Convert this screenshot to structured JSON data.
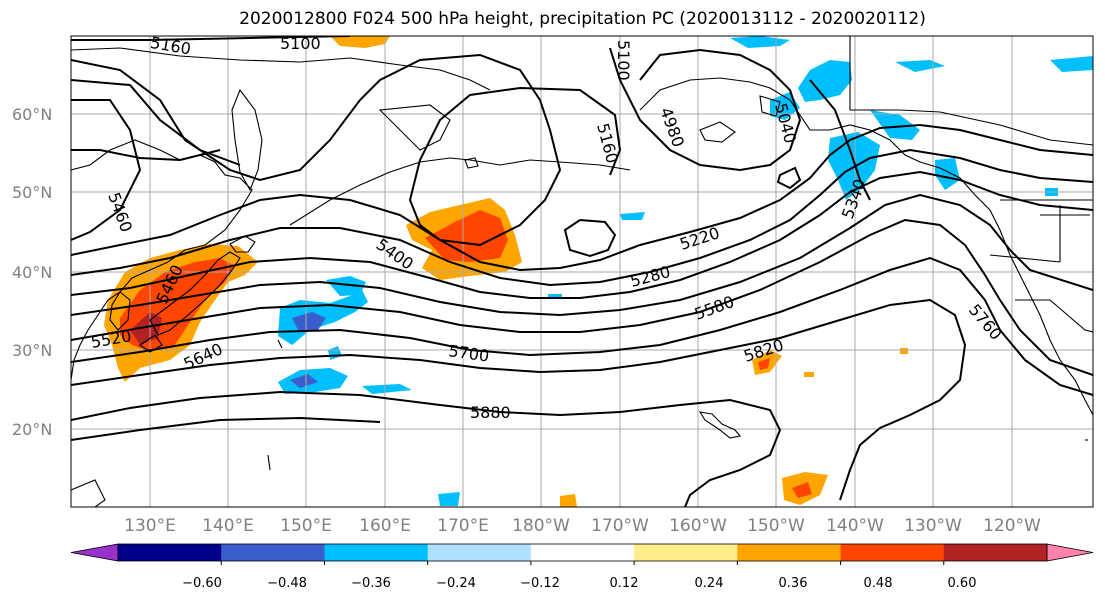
{
  "title": "2020012800 F024 500 hPa height, precipitation PC (2020013112 - 2020020112)",
  "lat_labels": [
    "60°N",
    "50°N",
    "40°N",
    "30°N",
    "20°N"
  ],
  "lon_labels": [
    "130°E",
    "140°E",
    "150°E",
    "160°E",
    "170°E",
    "180°W",
    "170°W",
    "160°W",
    "150°W",
    "140°W",
    "130°W",
    "120°W"
  ],
  "contour_labels": [
    "5160",
    "5100",
    "5100",
    "4980",
    "5040",
    "5160",
    "5460",
    "5400",
    "5220",
    "5340",
    "5280",
    "5460",
    "5580",
    "5520",
    "5640",
    "5700",
    "5820",
    "5760",
    "5880"
  ],
  "colorbar": {
    "ticks": [
      "−0.60",
      "−0.48",
      "−0.36",
      "−0.24",
      "−0.12",
      "0.12",
      "0.24",
      "0.36",
      "0.48",
      "0.60"
    ],
    "colors": [
      "#9932cc",
      "#00008b",
      "#3a5fcd",
      "#00bfff",
      "#b0e2ff",
      "#ffffff",
      "#ffec8b",
      "#ffa500",
      "#ff4500",
      "#b22222",
      "#ff82ab"
    ]
  },
  "colors": {
    "orange": "#ffa500",
    "red_orange": "#ff4500",
    "light_yellow": "#ffec8b",
    "deep_sky_blue": "#00bfff",
    "light_blue": "#b0e2ff",
    "royal_blue": "#3a5fcd"
  }
}
